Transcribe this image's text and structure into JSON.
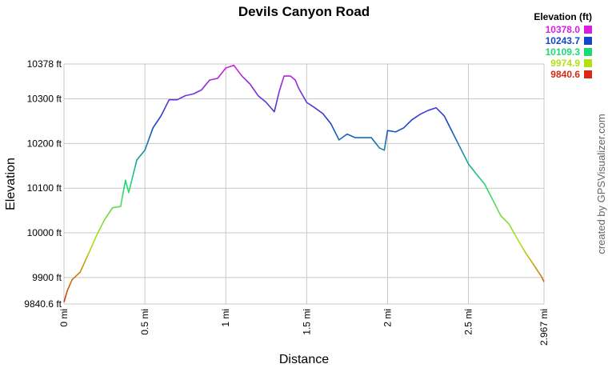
{
  "chart_data": {
    "type": "line",
    "title": "Devils Canyon Road",
    "x_label": "Distance",
    "y_label": "Elevation",
    "credit": "created by GPSVisualizer.com",
    "legend_title": "Elevation (ft)",
    "legend": [
      {
        "value": 10378,
        "label": "10378.0",
        "color": "#d81ee0"
      },
      {
        "value": 10243.7,
        "label": "10243.7",
        "color": "#1446c8"
      },
      {
        "value": 10109.3,
        "label": "10109.3",
        "color": "#1ed878"
      },
      {
        "value": 9974.9,
        "label": "9974.9",
        "color": "#b4e010"
      },
      {
        "value": 9840.6,
        "label": "9840.6",
        "color": "#d82818"
      }
    ],
    "x": [
      0,
      0.02,
      0.05,
      0.1,
      0.15,
      0.2,
      0.25,
      0.3,
      0.35,
      0.38,
      0.4,
      0.45,
      0.5,
      0.55,
      0.6,
      0.65,
      0.7,
      0.75,
      0.8,
      0.85,
      0.9,
      0.95,
      1.0,
      1.05,
      1.1,
      1.15,
      1.2,
      1.25,
      1.3,
      1.33,
      1.36,
      1.4,
      1.43,
      1.45,
      1.5,
      1.55,
      1.6,
      1.65,
      1.7,
      1.75,
      1.8,
      1.85,
      1.9,
      1.95,
      1.98,
      2.0,
      2.05,
      2.1,
      2.15,
      2.2,
      2.25,
      2.3,
      2.35,
      2.4,
      2.45,
      2.5,
      2.55,
      2.6,
      2.65,
      2.7,
      2.75,
      2.8,
      2.85,
      2.9,
      2.95,
      2.967
    ],
    "series": [
      {
        "name": "Elevation",
        "values": [
          9845,
          9870,
          9895,
          9912,
          9952,
          9993,
          10029,
          10056,
          10059,
          10118,
          10090,
          10163,
          10185,
          10235,
          10262,
          10298,
          10298,
          10307,
          10311,
          10320,
          10342,
          10346,
          10369,
          10375,
          10351,
          10333,
          10307,
          10292,
          10271,
          10316,
          10351,
          10351,
          10342,
          10324,
          10292,
          10280,
          10267,
          10244,
          10208,
          10221,
          10213,
          10213,
          10213,
          10190,
          10185,
          10229,
          10226,
          10235,
          10253,
          10265,
          10274,
          10280,
          10262,
          10226,
          10190,
          10154,
          10131,
          10109,
          10074,
          10038,
          10020,
          9988,
          9957,
          9930,
          9903,
          9890
        ]
      }
    ],
    "xlim": [
      0,
      2.967
    ],
    "xticks": [
      {
        "value": 0,
        "label": "0 mi"
      },
      {
        "value": 0.5,
        "label": "0.5 mi"
      },
      {
        "value": 1,
        "label": "1 mi"
      },
      {
        "value": 1.5,
        "label": "1.5 mi"
      },
      {
        "value": 2,
        "label": "2 mi"
      },
      {
        "value": 2.5,
        "label": "2.5 mi"
      },
      {
        "value": 2.967,
        "label": "2.967 mi"
      }
    ],
    "ylim": [
      9840.6,
      10378
    ],
    "yticks": [
      {
        "value": 9840.6,
        "label": "9840.6 ft"
      },
      {
        "value": 9900,
        "label": "9900 ft"
      },
      {
        "value": 10000,
        "label": "10000 ft"
      },
      {
        "value": 10100,
        "label": "10100 ft"
      },
      {
        "value": 10200,
        "label": "10200 ft"
      },
      {
        "value": 10300,
        "label": "10300 ft"
      },
      {
        "value": 10378,
        "label": "10378 ft"
      }
    ],
    "grid": true
  }
}
